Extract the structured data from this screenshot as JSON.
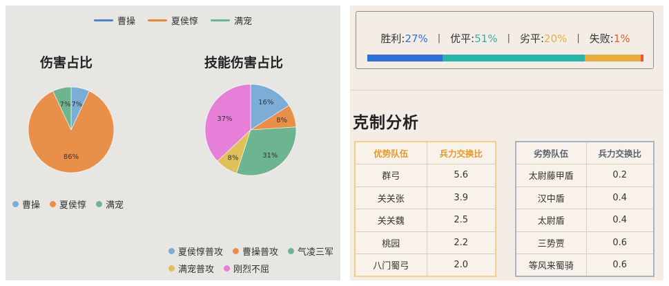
{
  "legend_top": [
    {
      "name": "曹操",
      "color": "#4a86c8"
    },
    {
      "name": "夏侯惇",
      "color": "#e8873b"
    },
    {
      "name": "满宠",
      "color": "#6db590"
    }
  ],
  "chart_data": [
    {
      "type": "pie",
      "title": "伤害占比",
      "slices": [
        {
          "name": "曹操",
          "value": 7,
          "label": "7%",
          "color": "#7badd6"
        },
        {
          "name": "夏侯惇",
          "value": 86,
          "label": "86%",
          "color": "#e8904a"
        },
        {
          "name": "满宠",
          "value": 7,
          "label": "7%",
          "color": "#6db590"
        }
      ],
      "legend_placement": "bottom-left"
    },
    {
      "type": "pie",
      "title": "技能伤害占比",
      "slices": [
        {
          "name": "夏侯惇普攻",
          "value": 16,
          "label": "16%",
          "color": "#7badd6"
        },
        {
          "name": "曹操普攻",
          "value": 8,
          "label": "8%",
          "color": "#e8904a"
        },
        {
          "name": "气凌三军",
          "value": 31,
          "label": "31%",
          "color": "#6db590"
        },
        {
          "name": "满宠普攻",
          "value": 8,
          "label": "8%",
          "color": "#e0c05a"
        },
        {
          "name": "刚烈不屈",
          "value": 37,
          "label": "37%",
          "color": "#e67fd8"
        }
      ],
      "legend_placement": "bottom-right"
    }
  ],
  "stats": {
    "items": [
      {
        "label": "胜利:",
        "value": "27%",
        "num": 27,
        "color": "#2f6fd6"
      },
      {
        "label": "优平:",
        "value": "51%",
        "num": 51,
        "color": "#2bb5a8"
      },
      {
        "label": "劣平:",
        "value": "20%",
        "num": 20,
        "color": "#e8ad3f"
      },
      {
        "label": "失败:",
        "value": "1%",
        "num": 1,
        "color": "#f0552a"
      }
    ],
    "separator": "|"
  },
  "analysis": {
    "title": "克制分析",
    "advantage": {
      "headers": [
        "优势队伍",
        "兵力交换比"
      ],
      "rows": [
        [
          "群弓",
          "5.6"
        ],
        [
          "关关张",
          "3.9"
        ],
        [
          "关关魏",
          "2.5"
        ],
        [
          "桃园",
          "2.2"
        ],
        [
          "八门蜀弓",
          "2.0"
        ]
      ]
    },
    "disadvantage": {
      "headers": [
        "劣势队伍",
        "兵力交换比"
      ],
      "rows": [
        [
          "太尉藤甲盾",
          "0.2"
        ],
        [
          "汉中盾",
          "0.4"
        ],
        [
          "太尉盾",
          "0.4"
        ],
        [
          "三势贾",
          "0.6"
        ],
        [
          "等风来蜀骑",
          "0.6"
        ]
      ]
    }
  }
}
